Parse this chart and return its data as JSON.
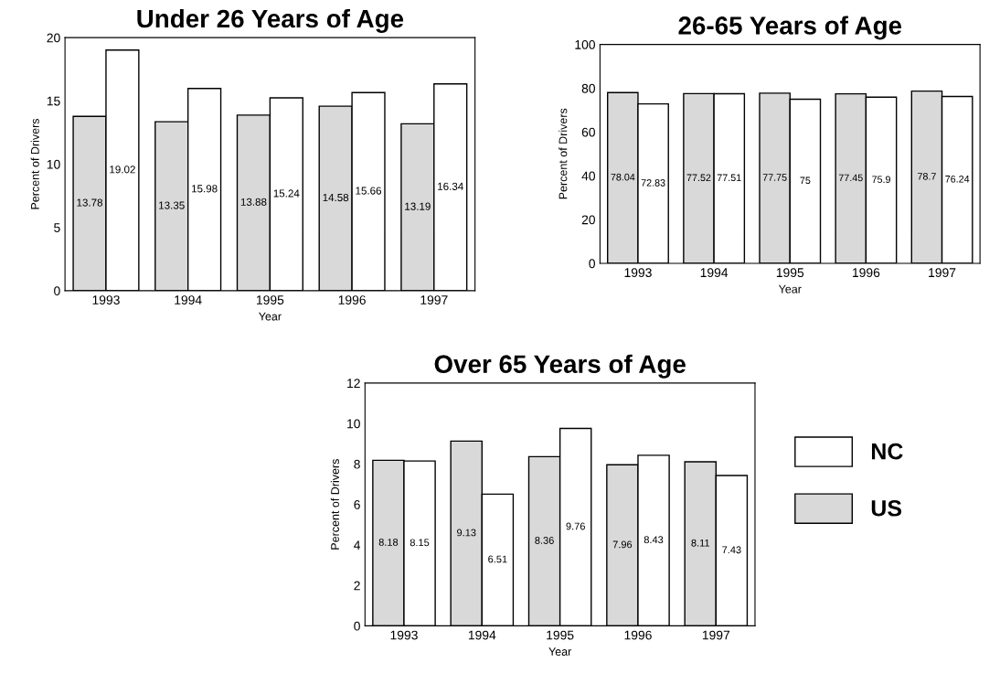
{
  "chart_data": [
    {
      "type": "bar",
      "title": "Under 26 Years of Age",
      "xlabel": "Year",
      "ylabel": "Percent of Drivers",
      "categories": [
        "1993",
        "1994",
        "1995",
        "1996",
        "1997"
      ],
      "series": [
        {
          "color": "#d9d9d9",
          "values": [
            13.78,
            13.35,
            13.88,
            14.58,
            13.19
          ]
        },
        {
          "color": "#ffffff",
          "values": [
            19.02,
            15.98,
            15.24,
            15.66,
            16.34
          ]
        }
      ],
      "ylim": [
        0,
        20
      ],
      "yticks": [
        0,
        5,
        10,
        15,
        20
      ],
      "data_labels": true
    },
    {
      "type": "bar",
      "title": "26-65 Years of Age",
      "xlabel": "Year",
      "ylabel": "Percent of Drivers",
      "categories": [
        "1993",
        "1994",
        "1995",
        "1996",
        "1997"
      ],
      "series": [
        {
          "color": "#d9d9d9",
          "values": [
            78.04,
            77.52,
            77.75,
            77.45,
            78.7
          ]
        },
        {
          "color": "#ffffff",
          "values": [
            72.83,
            77.51,
            75,
            75.9,
            76.24
          ]
        }
      ],
      "ylim": [
        0,
        100
      ],
      "yticks": [
        0,
        20,
        40,
        60,
        80,
        100
      ],
      "data_labels": true
    },
    {
      "type": "bar",
      "title": "Over 65 Years of Age",
      "xlabel": "Year",
      "ylabel": "Percent of Drivers",
      "categories": [
        "1993",
        "1994",
        "1995",
        "1996",
        "1997"
      ],
      "series": [
        {
          "name": "US",
          "color": "#d9d9d9",
          "values": [
            8.18,
            9.13,
            8.36,
            7.96,
            8.11
          ]
        },
        {
          "name": "NC",
          "color": "#ffffff",
          "values": [
            8.15,
            6.51,
            9.76,
            8.43,
            7.43
          ]
        }
      ],
      "ylim": [
        0,
        12
      ],
      "yticks": [
        0,
        2,
        4,
        6,
        8,
        10,
        12
      ],
      "data_labels": true,
      "legend": "right"
    }
  ]
}
